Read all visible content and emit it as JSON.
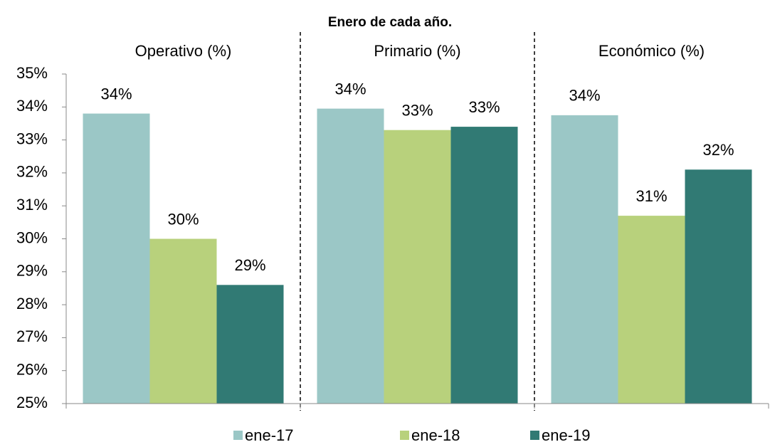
{
  "chart_data": {
    "type": "bar",
    "title": "Enero de cada año.",
    "categories": [
      "Operativo (%)",
      "Primario (%)",
      "Económico (%)"
    ],
    "series": [
      {
        "name": "ene-17",
        "color": "#9bc7c6",
        "values": [
          33.8,
          33.95,
          33.75
        ],
        "value_labels": [
          "34%",
          "34%",
          "34%"
        ]
      },
      {
        "name": "ene-18",
        "color": "#b8d17c",
        "values": [
          30.0,
          33.3,
          30.7
        ],
        "value_labels": [
          "30%",
          "33%",
          "31%"
        ]
      },
      {
        "name": "ene-19",
        "color": "#317a74",
        "values": [
          28.6,
          33.4,
          32.1
        ],
        "value_labels": [
          "29%",
          "33%",
          "32%"
        ]
      }
    ],
    "ylim": [
      25,
      35
    ],
    "yticks": [
      {
        "value": 25,
        "label": "25%"
      },
      {
        "value": 26,
        "label": "26%"
      },
      {
        "value": 27,
        "label": "27%"
      },
      {
        "value": 28,
        "label": "28%"
      },
      {
        "value": 29,
        "label": "29%"
      },
      {
        "value": 30,
        "label": "30%"
      },
      {
        "value": 31,
        "label": "31%"
      },
      {
        "value": 32,
        "label": "32%"
      },
      {
        "value": 33,
        "label": "33%"
      },
      {
        "value": 34,
        "label": "34%"
      },
      {
        "value": 35,
        "label": "35%"
      }
    ],
    "grid": false,
    "legend": "bottom"
  }
}
